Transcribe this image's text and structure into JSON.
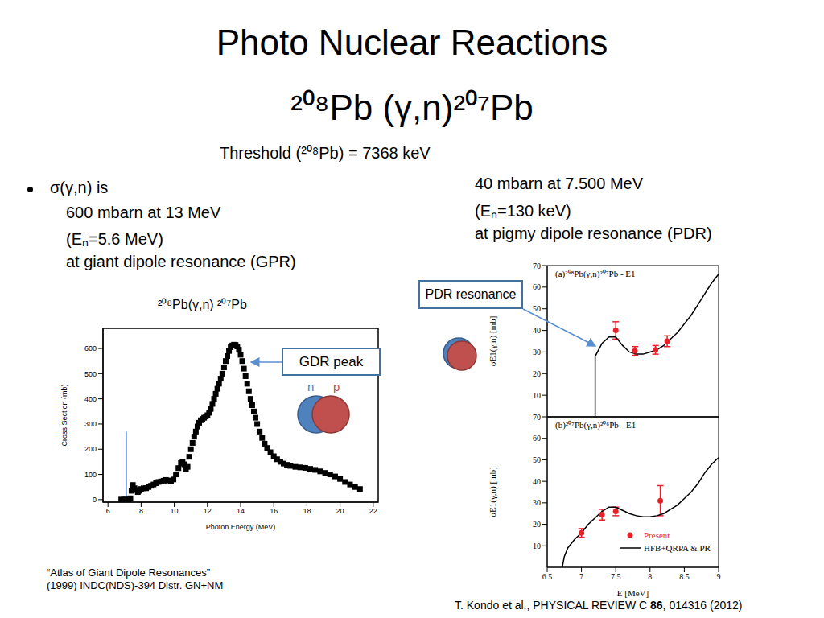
{
  "slide": {
    "title": "Photo Nuclear Reactions",
    "subtitle": "²⁰⁸Pb (γ,n)²⁰⁷Pb",
    "threshold": "Threshold (²⁰⁸Pb) = 7368 keV",
    "bullet": [
      "σ(γ,n) is",
      "600 mbarn at 13 MeV",
      "(Eₙ=5.6 MeV)",
      "at giant dipole resonance (GPR)"
    ],
    "pdr_text": [
      "40 mbarn at 7.500 MeV",
      "(Eₙ=130 keV)",
      "at pigmy dipole resonance (PDR)"
    ],
    "gdr_box": "GDR peak",
    "pdr_box": "PDR resonance",
    "n_label": "n",
    "p_label": "p",
    "citation_left": [
      "“Atlas of Giant Dipole Resonances”",
      "(1999) INDC(NDS)-394 Distr. GN+NM"
    ],
    "citation_right": {
      "before": "T. Kondo et al., PHYSICAL REVIEW C ",
      "bold": "86",
      "after": ", 014316 (2012)"
    }
  },
  "chart_data": [
    {
      "type": "scatter",
      "title": "²⁰⁸Pb(γ,n) ²⁰⁷Pb",
      "x_label": "Photon Energy (MeV)",
      "y_label": "Cross Section (mb)",
      "xlim": [
        5.7,
        22.3
      ],
      "xticks": [
        6,
        8,
        10,
        12,
        14,
        16,
        18,
        20,
        22
      ],
      "ylim": [
        -10,
        680
      ],
      "yticks": [
        0,
        100,
        200,
        300,
        400,
        500,
        600
      ],
      "marker": "square",
      "color": "#000000",
      "x": [
        6.8,
        6.95,
        7.1,
        7.25,
        7.35,
        7.42,
        7.5,
        7.6,
        7.7,
        7.8,
        7.9,
        8.0,
        8.15,
        8.3,
        8.45,
        8.6,
        8.75,
        8.9,
        9.05,
        9.2,
        9.35,
        9.5,
        9.65,
        9.8,
        9.95,
        10.1,
        10.25,
        10.4,
        10.5,
        10.6,
        10.7,
        10.8,
        10.9,
        11.0,
        11.1,
        11.2,
        11.3,
        11.4,
        11.5,
        11.6,
        11.7,
        11.8,
        11.9,
        12.0,
        12.1,
        12.2,
        12.3,
        12.4,
        12.5,
        12.6,
        12.7,
        12.8,
        12.9,
        13.0,
        13.1,
        13.2,
        13.3,
        13.4,
        13.5,
        13.6,
        13.7,
        13.8,
        13.9,
        14.0,
        14.1,
        14.2,
        14.3,
        14.4,
        14.5,
        14.6,
        14.7,
        14.8,
        14.9,
        15.0,
        15.15,
        15.3,
        15.45,
        15.6,
        15.8,
        16.0,
        16.2,
        16.4,
        16.6,
        16.8,
        17.0,
        17.3,
        17.6,
        17.9,
        18.2,
        18.5,
        18.8,
        19.1,
        19.4,
        19.7,
        20.0,
        20.3,
        20.6,
        20.9,
        21.2
      ],
      "values": [
        0,
        0,
        0,
        0,
        5,
        35,
        58,
        45,
        38,
        30,
        35,
        42,
        45,
        45,
        50,
        55,
        60,
        65,
        70,
        72,
        75,
        78,
        76,
        72,
        80,
        100,
        125,
        145,
        150,
        140,
        120,
        130,
        170,
        200,
        225,
        250,
        270,
        290,
        305,
        315,
        320,
        325,
        330,
        335,
        345,
        360,
        380,
        400,
        420,
        440,
        460,
        480,
        500,
        525,
        550,
        570,
        590,
        605,
        612,
        615,
        614,
        608,
        595,
        575,
        550,
        520,
        490,
        460,
        430,
        400,
        375,
        350,
        325,
        300,
        270,
        245,
        222,
        205,
        188,
        172,
        160,
        150,
        143,
        138,
        134,
        130,
        128,
        126,
        122,
        118,
        112,
        106,
        100,
        92,
        82,
        70,
        60,
        50,
        42
      ],
      "reference_line": {
        "x": 7.1,
        "y": [
          0,
          270
        ],
        "color": "#4472c4"
      }
    },
    {
      "type": "line",
      "title": "(a)²⁰⁸Pb(γ,n)²⁰⁷Pb - E1",
      "y_label": "σE1(γ,n) [mb]",
      "xlim": [
        6.5,
        9
      ],
      "xticks": [
        6.5,
        7,
        7.5,
        8,
        8.5,
        9
      ],
      "ylim": [
        0,
        70
      ],
      "yticks": [
        10,
        20,
        30,
        40,
        50,
        60,
        70
      ],
      "tick_labels": "y",
      "series": [
        {
          "type": "scatter",
          "color": "#e8202a",
          "marker": "circle",
          "x": [
            7.5,
            7.78,
            8.08,
            8.25
          ],
          "values": [
            40,
            30.5,
            31,
            35
          ],
          "errors": [
            4,
            2,
            2,
            2.5
          ]
        },
        {
          "type": "line",
          "color": "#000000",
          "line_style": "solid",
          "x": [
            7.2,
            7.2,
            7.3,
            7.4,
            7.5,
            7.6,
            7.7,
            7.8,
            7.9,
            8.0,
            8.1,
            8.2,
            8.3,
            8.4,
            8.5,
            8.6,
            8.7,
            8.8,
            8.9,
            9.0
          ],
          "values": [
            0,
            28,
            34,
            37,
            37,
            33,
            30,
            29,
            29,
            30,
            31,
            33,
            36,
            39,
            43,
            47,
            52,
            57,
            62,
            66
          ]
        }
      ]
    },
    {
      "type": "line",
      "title": "(b)²⁰⁷Pb(γ,n)²⁰⁶Pb - E1",
      "x_label": "E [MeV]",
      "y_label": "σE1(γ,n) [mb]",
      "xlim": [
        6.5,
        9
      ],
      "xticks": [
        6.5,
        7,
        7.5,
        8,
        8.5,
        9
      ],
      "ylim": [
        0,
        70
      ],
      "yticks": [
        10,
        20,
        30,
        40,
        50,
        60,
        70
      ],
      "legend": "lower right",
      "series": [
        {
          "name": "Present",
          "type": "scatter",
          "color": "#e8202a",
          "marker": "circle",
          "x": [
            7.0,
            7.3,
            7.5,
            8.15
          ],
          "values": [
            16,
            24.5,
            26,
            31
          ],
          "errors": [
            2,
            2.5,
            2,
            7
          ]
        },
        {
          "name": "HFB+QRPA & PR",
          "type": "line",
          "color": "#000000",
          "line_style": "solid",
          "x": [
            6.72,
            6.75,
            6.8,
            6.9,
            7.0,
            7.1,
            7.2,
            7.3,
            7.4,
            7.5,
            7.6,
            7.7,
            7.8,
            7.9,
            8.0,
            8.1,
            8.2,
            8.3,
            8.4,
            8.5,
            8.6,
            8.7,
            8.8,
            8.9,
            9.0
          ],
          "values": [
            0,
            5,
            9,
            13,
            16,
            20,
            23,
            26,
            28,
            28,
            26.5,
            25,
            24,
            23.5,
            23.5,
            24,
            25,
            27,
            29,
            32,
            35,
            39,
            44,
            48,
            51
          ]
        }
      ]
    }
  ]
}
